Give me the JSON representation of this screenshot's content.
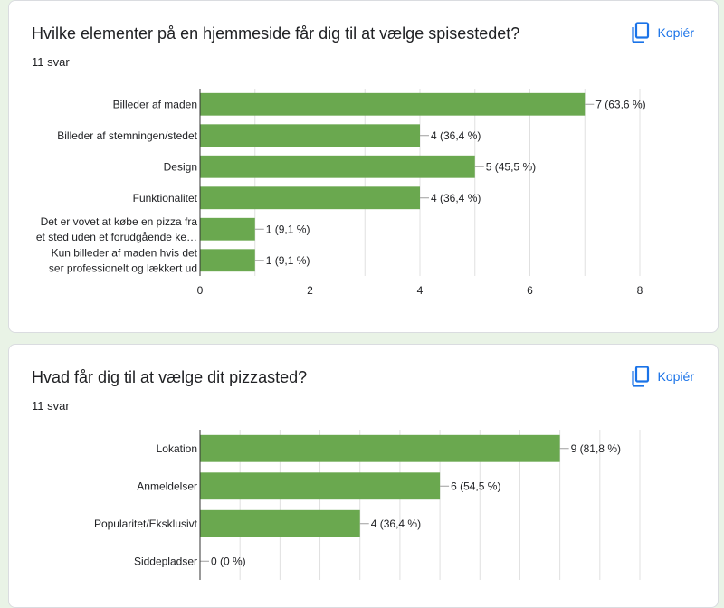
{
  "questions": [
    {
      "title": "Hvilke elementer på en hjemmeside får dig til at vælge spisestedet?",
      "count": "11 svar",
      "copy_label": "Kopiér"
    },
    {
      "title": "Hvad får dig til at vælge dit pizzasted?",
      "count": "11 svar",
      "copy_label": "Kopiér"
    }
  ],
  "colors": {
    "bar": "#6aa84f",
    "accent": "#1a73e8",
    "grid": "#e0e0e0"
  },
  "chart_data": [
    {
      "type": "bar",
      "orientation": "horizontal",
      "categories": [
        [
          "Billeder af maden"
        ],
        [
          "Billeder af stemningen/stedet"
        ],
        [
          "Design"
        ],
        [
          "Funktionalitet"
        ],
        [
          "Det er vovet at købe en pizza fra",
          "et sted uden et forudgående ke…"
        ],
        [
          "Kun billeder af maden hvis det",
          "ser professionelt og lækkert ud"
        ]
      ],
      "values": [
        7,
        4,
        5,
        4,
        1,
        1
      ],
      "value_labels": [
        "7 (63,6 %)",
        "4 (36,4 %)",
        "5 (45,5 %)",
        "4 (36,4 %)",
        "1 (9,1 %)",
        "1 (9,1 %)"
      ],
      "xlim": [
        0,
        8
      ],
      "xticks": [
        "0",
        "2",
        "4",
        "6",
        "8"
      ],
      "grid": true
    },
    {
      "type": "bar",
      "orientation": "horizontal",
      "categories": [
        [
          "Lokation"
        ],
        [
          "Anmeldelser"
        ],
        [
          "Popularitet/Eksklusivt"
        ],
        [
          "Siddepladser"
        ]
      ],
      "values": [
        9,
        6,
        4,
        0
      ],
      "value_labels": [
        "9 (81,8 %)",
        "6 (54,5 %)",
        "4 (36,4 %)",
        "0 (0 %)"
      ],
      "xlim": [
        0,
        11
      ],
      "grid": true
    }
  ]
}
